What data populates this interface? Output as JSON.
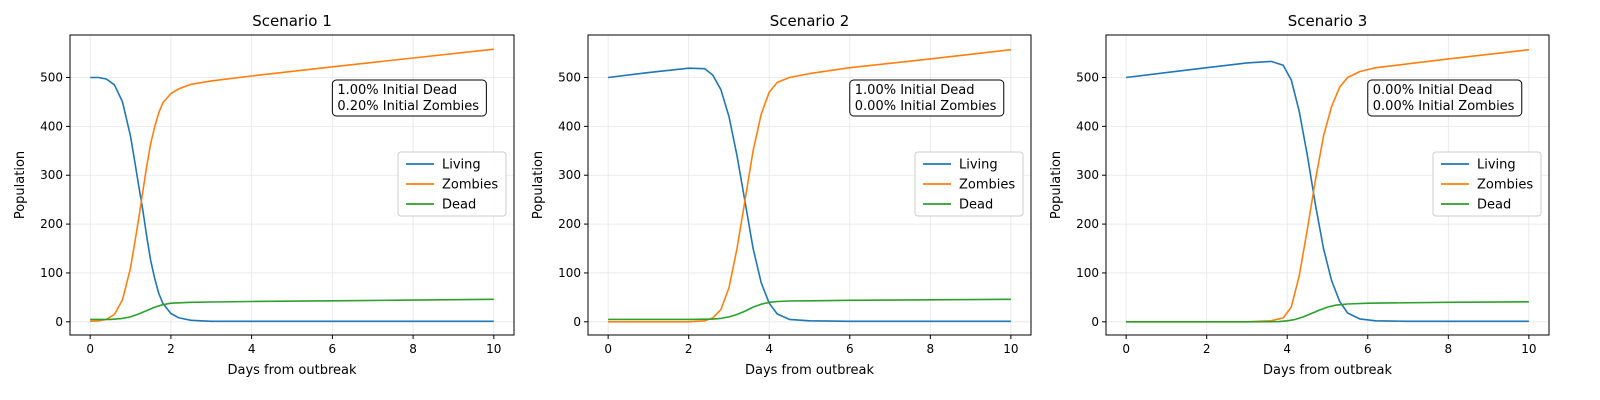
{
  "chart_data": [
    {
      "type": "line",
      "title": "Scenario 1",
      "xlabel": "Days from outbreak",
      "ylabel": "Population",
      "xlim": [
        -0.5,
        10.5
      ],
      "ylim": [
        -27,
        587
      ],
      "xticks": [
        0,
        2,
        4,
        6,
        8,
        10
      ],
      "yticks": [
        0,
        100,
        200,
        300,
        400,
        500
      ],
      "grid": true,
      "legend_position": "center-right",
      "annotation": [
        "1.00% Initial Dead",
        "0.20% Initial Zombies"
      ],
      "series": [
        {
          "name": "Living",
          "color": "#1f77b4",
          "x": [
            0,
            0.2,
            0.4,
            0.6,
            0.8,
            1.0,
            1.1,
            1.2,
            1.3,
            1.4,
            1.5,
            1.6,
            1.7,
            1.8,
            2.0,
            2.2,
            2.5,
            3.0,
            4,
            6,
            8,
            10
          ],
          "y": [
            500,
            500,
            497,
            485,
            450,
            380,
            330,
            280,
            230,
            175,
            125,
            88,
            58,
            38,
            17,
            8,
            3,
            1,
            1,
            1,
            1,
            1
          ]
        },
        {
          "name": "Zombies",
          "color": "#ff7f0e",
          "x": [
            0,
            0.2,
            0.4,
            0.6,
            0.8,
            1.0,
            1.1,
            1.2,
            1.3,
            1.4,
            1.5,
            1.6,
            1.7,
            1.8,
            2.0,
            2.2,
            2.5,
            3.0,
            4,
            6,
            8,
            10
          ],
          "y": [
            1,
            2,
            5,
            15,
            45,
            110,
            160,
            210,
            265,
            318,
            365,
            400,
            428,
            448,
            467,
            477,
            486,
            493,
            503,
            522,
            540,
            558
          ]
        },
        {
          "name": "Dead",
          "color": "#2ca02c",
          "x": [
            0,
            0.5,
            0.8,
            1.0,
            1.2,
            1.4,
            1.6,
            1.8,
            2.0,
            2.5,
            3.0,
            4,
            6,
            8,
            10
          ],
          "y": [
            5,
            5,
            7,
            10,
            16,
            23,
            30,
            35,
            38,
            40,
            40.5,
            41.5,
            43,
            44.5,
            46
          ]
        }
      ]
    },
    {
      "type": "line",
      "title": "Scenario 2",
      "xlabel": "Days from outbreak",
      "ylabel": "Population",
      "xlim": [
        -0.5,
        10.5
      ],
      "ylim": [
        -27,
        587
      ],
      "xticks": [
        0,
        2,
        4,
        6,
        8,
        10
      ],
      "yticks": [
        0,
        100,
        200,
        300,
        400,
        500
      ],
      "grid": true,
      "legend_position": "center-right",
      "annotation": [
        "1.00% Initial Dead",
        "0.00% Initial Zombies"
      ],
      "series": [
        {
          "name": "Living",
          "color": "#1f77b4",
          "x": [
            0,
            1.0,
            2.0,
            2.4,
            2.6,
            2.8,
            3.0,
            3.2,
            3.4,
            3.6,
            3.8,
            4.0,
            4.2,
            4.5,
            5.0,
            6,
            8,
            10
          ],
          "y": [
            500,
            510,
            519,
            518,
            505,
            475,
            420,
            340,
            245,
            150,
            80,
            38,
            16,
            5,
            2,
            1,
            1,
            1
          ]
        },
        {
          "name": "Zombies",
          "color": "#ff7f0e",
          "x": [
            0,
            1.0,
            2.0,
            2.4,
            2.6,
            2.8,
            3.0,
            3.2,
            3.4,
            3.6,
            3.8,
            4.0,
            4.2,
            4.5,
            5.0,
            6,
            8,
            10
          ],
          "y": [
            0,
            0,
            0,
            2,
            8,
            25,
            70,
            150,
            250,
            350,
            425,
            470,
            490,
            500,
            508,
            520,
            538,
            557
          ]
        },
        {
          "name": "Dead",
          "color": "#2ca02c",
          "x": [
            0,
            1.0,
            2.0,
            2.6,
            2.8,
            3.0,
            3.2,
            3.4,
            3.6,
            3.8,
            4.0,
            4.2,
            4.5,
            5,
            6,
            8,
            10
          ],
          "y": [
            5,
            5,
            5,
            5.5,
            7,
            10,
            15,
            22,
            30,
            36,
            40,
            41.5,
            42.5,
            43,
            44,
            45,
            46
          ]
        }
      ]
    },
    {
      "type": "line",
      "title": "Scenario 3",
      "xlabel": "Days from outbreak",
      "ylabel": "Population",
      "xlim": [
        -0.5,
        10.5
      ],
      "ylim": [
        -27,
        587
      ],
      "xticks": [
        0,
        2,
        4,
        6,
        8,
        10
      ],
      "yticks": [
        0,
        100,
        200,
        300,
        400,
        500
      ],
      "grid": true,
      "legend_position": "center-right",
      "annotation": [
        "0.00% Initial Dead",
        "0.00% Initial Zombies"
      ],
      "series": [
        {
          "name": "Living",
          "color": "#1f77b4",
          "x": [
            0,
            1.0,
            2.0,
            3.0,
            3.6,
            3.9,
            4.1,
            4.3,
            4.5,
            4.7,
            4.9,
            5.1,
            5.3,
            5.5,
            5.8,
            6.2,
            7,
            8,
            10
          ],
          "y": [
            500,
            510,
            520,
            530,
            533,
            525,
            495,
            430,
            340,
            240,
            150,
            85,
            42,
            18,
            6,
            2,
            1,
            1,
            1
          ]
        },
        {
          "name": "Zombies",
          "color": "#ff7f0e",
          "x": [
            0,
            1.0,
            2.0,
            3.0,
            3.6,
            3.9,
            4.1,
            4.3,
            4.5,
            4.7,
            4.9,
            5.1,
            5.3,
            5.5,
            5.8,
            6.2,
            7,
            8,
            10
          ],
          "y": [
            0,
            0,
            0,
            0,
            2,
            8,
            30,
            95,
            190,
            290,
            380,
            440,
            480,
            500,
            512,
            520,
            528,
            538,
            557
          ]
        },
        {
          "name": "Dead",
          "color": "#2ca02c",
          "x": [
            0,
            1.0,
            2.0,
            3.0,
            3.8,
            4.0,
            4.2,
            4.4,
            4.6,
            4.8,
            5.0,
            5.2,
            5.5,
            6,
            8,
            10
          ],
          "y": [
            0,
            0,
            0,
            0,
            0.5,
            2,
            5,
            10,
            17,
            24,
            30,
            34,
            36.5,
            38,
            40,
            41
          ]
        }
      ]
    }
  ]
}
